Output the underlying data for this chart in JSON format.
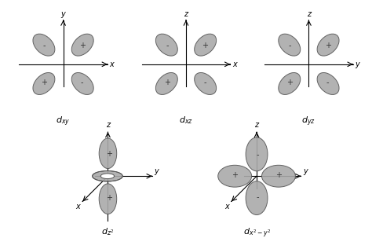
{
  "background_color": "#ffffff",
  "lobe_color": "#aaaaaa",
  "lobe_edge_color": "#555555",
  "lobe_alpha": 0.9,
  "lobe_color_dark": "#999999",
  "top_panels": [
    {
      "type": "diagonal",
      "ax1": "y",
      "ax2": "x",
      "signs": [
        "-",
        "+",
        "+",
        "-"
      ],
      "label": "$d_{xy}$"
    },
    {
      "type": "diagonal",
      "ax1": "z",
      "ax2": "x",
      "signs": [
        "-",
        "+",
        "+",
        "-"
      ],
      "label": "$d_{xz}$"
    },
    {
      "type": "diagonal",
      "ax1": "z",
      "ax2": "y",
      "signs": [
        "-",
        "+",
        "+",
        "-"
      ],
      "label": "$d_{yz}$"
    }
  ],
  "bottom_panels": [
    {
      "type": "dz2",
      "ax1": "z",
      "ax2": "y",
      "ax3": "x",
      "label": "$d_{z^2}$"
    },
    {
      "type": "dx2y2",
      "ax1": "z",
      "ax2": "y",
      "ax3": "x",
      "signs": [
        "-",
        "+",
        "+",
        "-"
      ],
      "label": "$d_{x^2-y^2}$"
    }
  ]
}
